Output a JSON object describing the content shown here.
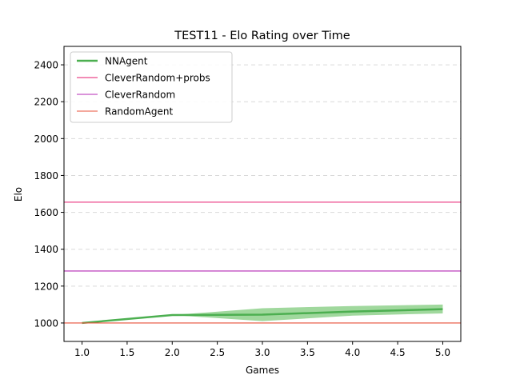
{
  "chart_data": {
    "type": "line",
    "title": "TEST11 - Elo Rating over Time",
    "xlabel": "Games",
    "ylabel": "Elo",
    "xlim": [
      0.8,
      5.2
    ],
    "ylim": [
      900,
      2500
    ],
    "xticks": [
      1.0,
      1.5,
      2.0,
      2.5,
      3.0,
      3.5,
      4.0,
      4.5,
      5.0
    ],
    "xtick_labels": [
      "1.0",
      "1.5",
      "2.0",
      "2.5",
      "3.0",
      "3.5",
      "4.0",
      "4.5",
      "5.0"
    ],
    "yticks": [
      1000,
      1200,
      1400,
      1600,
      1800,
      2000,
      2200,
      2400
    ],
    "ytick_labels": [
      "1000",
      "1200",
      "1400",
      "1600",
      "1800",
      "2000",
      "2200",
      "2400"
    ],
    "grid": "y-dashed",
    "legend_position": "top-left",
    "series": [
      {
        "name": "NNAgent",
        "color": "#4caf50",
        "band_color": "#8fd18c",
        "x": [
          1,
          2,
          3,
          4,
          5
        ],
        "values": [
          1000,
          1043,
          1045,
          1062,
          1075
        ],
        "band_low": [
          1000,
          1043,
          1010,
          1040,
          1052
        ],
        "band_high": [
          1000,
          1043,
          1080,
          1092,
          1100
        ]
      },
      {
        "name": "CleverRandom+probs",
        "color": "#e6196e",
        "hline": 1655
      },
      {
        "name": "CleverRandom",
        "color": "#b528b5",
        "hline": 1282
      },
      {
        "name": "RandomAgent",
        "color": "#e8503a",
        "hline": 1000
      }
    ]
  }
}
